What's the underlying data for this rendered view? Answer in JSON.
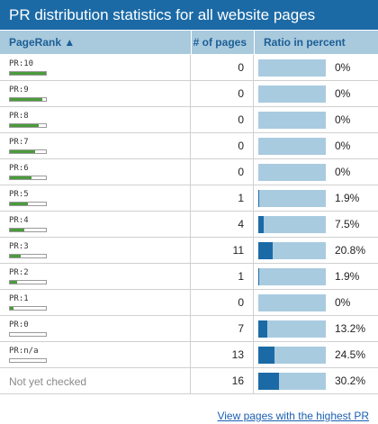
{
  "title": "PR distribution statistics for all website pages",
  "columns": {
    "pagerank": "PageRank ▲",
    "pages": "# of pages",
    "ratio": "Ratio in percent"
  },
  "rows": [
    {
      "pr": "PR:10",
      "pr_level": 1.0,
      "pages": "0",
      "ratio": "0%",
      "ratio_value": 0
    },
    {
      "pr": "PR:9",
      "pr_level": 0.9,
      "pages": "0",
      "ratio": "0%",
      "ratio_value": 0
    },
    {
      "pr": "PR:8",
      "pr_level": 0.8,
      "pages": "0",
      "ratio": "0%",
      "ratio_value": 0
    },
    {
      "pr": "PR:7",
      "pr_level": 0.7,
      "pages": "0",
      "ratio": "0%",
      "ratio_value": 0
    },
    {
      "pr": "PR:6",
      "pr_level": 0.6,
      "pages": "0",
      "ratio": "0%",
      "ratio_value": 0
    },
    {
      "pr": "PR:5",
      "pr_level": 0.5,
      "pages": "1",
      "ratio": "1.9%",
      "ratio_value": 1.9
    },
    {
      "pr": "PR:4",
      "pr_level": 0.4,
      "pages": "4",
      "ratio": "7.5%",
      "ratio_value": 7.5
    },
    {
      "pr": "PR:3",
      "pr_level": 0.3,
      "pages": "11",
      "ratio": "20.8%",
      "ratio_value": 20.8
    },
    {
      "pr": "PR:2",
      "pr_level": 0.2,
      "pages": "1",
      "ratio": "1.9%",
      "ratio_value": 1.9
    },
    {
      "pr": "PR:1",
      "pr_level": 0.1,
      "pages": "0",
      "ratio": "0%",
      "ratio_value": 0
    },
    {
      "pr": "PR:0",
      "pr_level": 0,
      "pages": "7",
      "ratio": "13.2%",
      "ratio_value": 13.2
    },
    {
      "pr": "PR:n/a",
      "pr_level": 0,
      "pages": "13",
      "ratio": "24.5%",
      "ratio_value": 24.5
    },
    {
      "pr": "Not yet checked",
      "pr_level": null,
      "pages": "16",
      "ratio": "30.2%",
      "ratio_value": 30.2
    }
  ],
  "footer_link": "View pages with the highest PR",
  "colors": {
    "header": "#1b6aa6",
    "column_header": "#a9c9dd",
    "pr_bar": "#4a9b3b",
    "ratio_track": "#a9cbe0",
    "ratio_fill": "#1b6aa6"
  }
}
